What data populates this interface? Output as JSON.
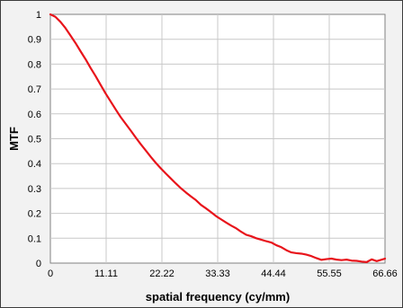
{
  "chart_data": {
    "type": "line",
    "title": "",
    "xlabel": "spatial frequency (cy/mm)",
    "ylabel": "MTF",
    "xlim": [
      0,
      66.66
    ],
    "ylim": [
      0,
      1
    ],
    "x_ticks": [
      "0",
      "11.11",
      "22.22",
      "33.33",
      "44.44",
      "55.55",
      "66.66"
    ],
    "y_ticks": [
      "0",
      "0.1",
      "0.2",
      "0.3",
      "0.4",
      "0.5",
      "0.6",
      "0.7",
      "0.8",
      "0.9",
      "1"
    ],
    "grid": true,
    "legend": "none",
    "series": [
      {
        "color": "#e8141b",
        "x": [
          0,
          1,
          2,
          3,
          4,
          5,
          6,
          7,
          8,
          9,
          10,
          11,
          12,
          13,
          14,
          15,
          16,
          17,
          18,
          19,
          20,
          21,
          22,
          23,
          24,
          25,
          26,
          27,
          28,
          29,
          30,
          31,
          32,
          33,
          34,
          35,
          36,
          37,
          38,
          39,
          40,
          41,
          42,
          43,
          44,
          45,
          46,
          47,
          48,
          49,
          50,
          51,
          52,
          53,
          54,
          55,
          56,
          57,
          58,
          59,
          60,
          61,
          62,
          63,
          64,
          65,
          66.66
        ],
        "y": [
          1.0,
          0.99,
          0.97,
          0.945,
          0.915,
          0.885,
          0.852,
          0.82,
          0.785,
          0.752,
          0.717,
          0.682,
          0.65,
          0.618,
          0.587,
          0.56,
          0.533,
          0.505,
          0.478,
          0.453,
          0.427,
          0.403,
          0.381,
          0.36,
          0.34,
          0.32,
          0.301,
          0.284,
          0.268,
          0.253,
          0.234,
          0.22,
          0.205,
          0.189,
          0.176,
          0.163,
          0.151,
          0.14,
          0.126,
          0.114,
          0.108,
          0.1,
          0.094,
          0.088,
          0.083,
          0.072,
          0.064,
          0.052,
          0.043,
          0.04,
          0.038,
          0.034,
          0.028,
          0.02,
          0.013,
          0.016,
          0.018,
          0.014,
          0.012,
          0.014,
          0.01,
          0.009,
          0.006,
          0.004,
          0.015,
          0.008,
          0.018
        ]
      }
    ]
  }
}
